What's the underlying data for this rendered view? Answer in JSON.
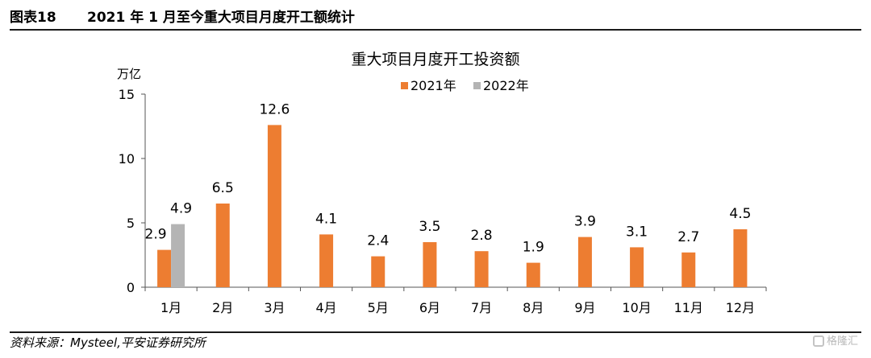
{
  "header": {
    "figure_number": "图表18",
    "figure_title": "2021 年 1 月至今重大项目月度开工额统计"
  },
  "source_note": "资料来源：Mysteel,平安证券研究所",
  "watermark": "格隆汇",
  "chart_data": {
    "type": "bar",
    "title": "重大项目月度开工投资额",
    "ylabel": "万亿",
    "xlabel": "",
    "ylim": [
      0,
      15
    ],
    "yticks": [
      0,
      5,
      10,
      15
    ],
    "categories": [
      "1月",
      "2月",
      "3月",
      "4月",
      "5月",
      "6月",
      "7月",
      "8月",
      "9月",
      "10月",
      "11月",
      "12月"
    ],
    "series": [
      {
        "name": "2021年",
        "color": "#ED7D31",
        "values": [
          2.9,
          6.5,
          12.6,
          4.1,
          2.4,
          3.5,
          2.8,
          1.9,
          3.9,
          3.1,
          2.7,
          4.5
        ]
      },
      {
        "name": "2022年",
        "color": "#B4B4B4",
        "values": [
          4.9,
          null,
          null,
          null,
          null,
          null,
          null,
          null,
          null,
          null,
          null,
          null
        ]
      }
    ],
    "legend_position": "top-center",
    "grid": false
  }
}
